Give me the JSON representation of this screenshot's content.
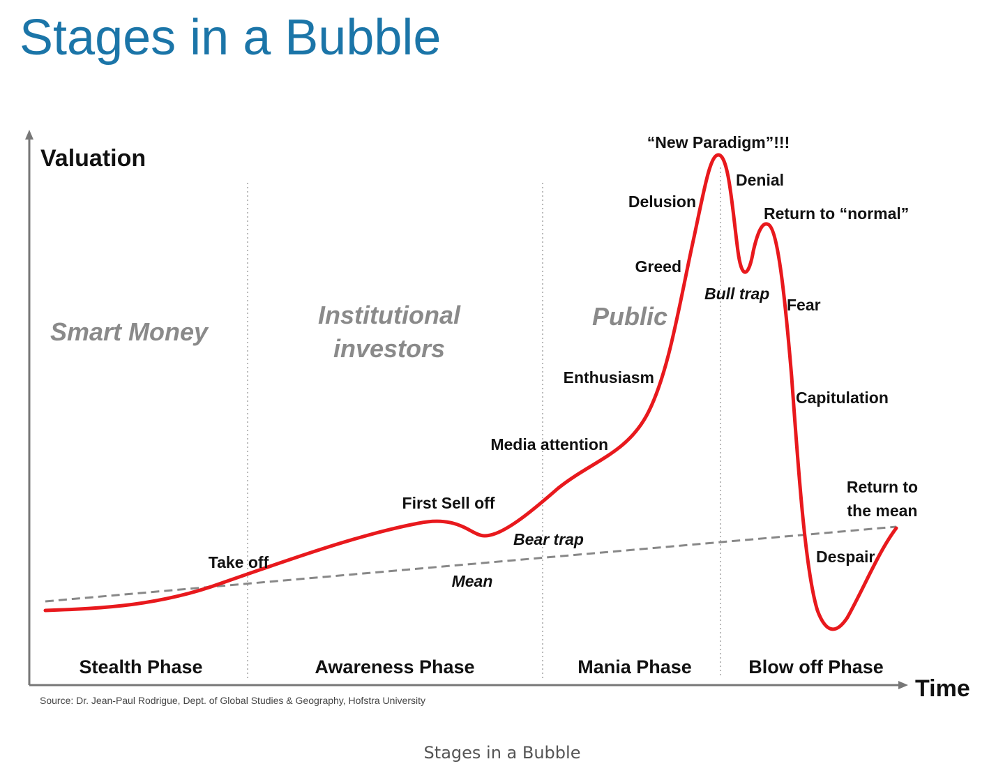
{
  "title": "Stages in a Bubble",
  "diagram": {
    "y_axis_label": "Valuation",
    "x_axis_label": "Time",
    "groups": [
      [
        "Smart Money"
      ],
      [
        "Institutional",
        "investors"
      ],
      [
        "Public"
      ]
    ],
    "phases": [
      "Stealth Phase",
      "Awareness Phase",
      "Mania Phase",
      "Blow off Phase"
    ],
    "annotations": {
      "new_paradigm": "“New Paradigm”!!!",
      "denial": "Denial",
      "return_to_normal": "Return to “normal”",
      "delusion": "Delusion",
      "greed": "Greed",
      "bull_trap": "Bull trap",
      "fear": "Fear",
      "enthusiasm": "Enthusiasm",
      "capitulation": "Capitulation",
      "media_attention": "Media attention",
      "first_sell_off": "First Sell off",
      "bear_trap": "Bear trap",
      "take_off": "Take off",
      "mean": "Mean",
      "despair": "Despair",
      "return_to_mean": [
        "Return to",
        "the mean"
      ]
    },
    "source": "Source: Dr. Jean-Paul Rodrigue, Dept. of Global Studies & Geography, Hofstra University"
  },
  "caption": "Stages in a Bubble"
}
